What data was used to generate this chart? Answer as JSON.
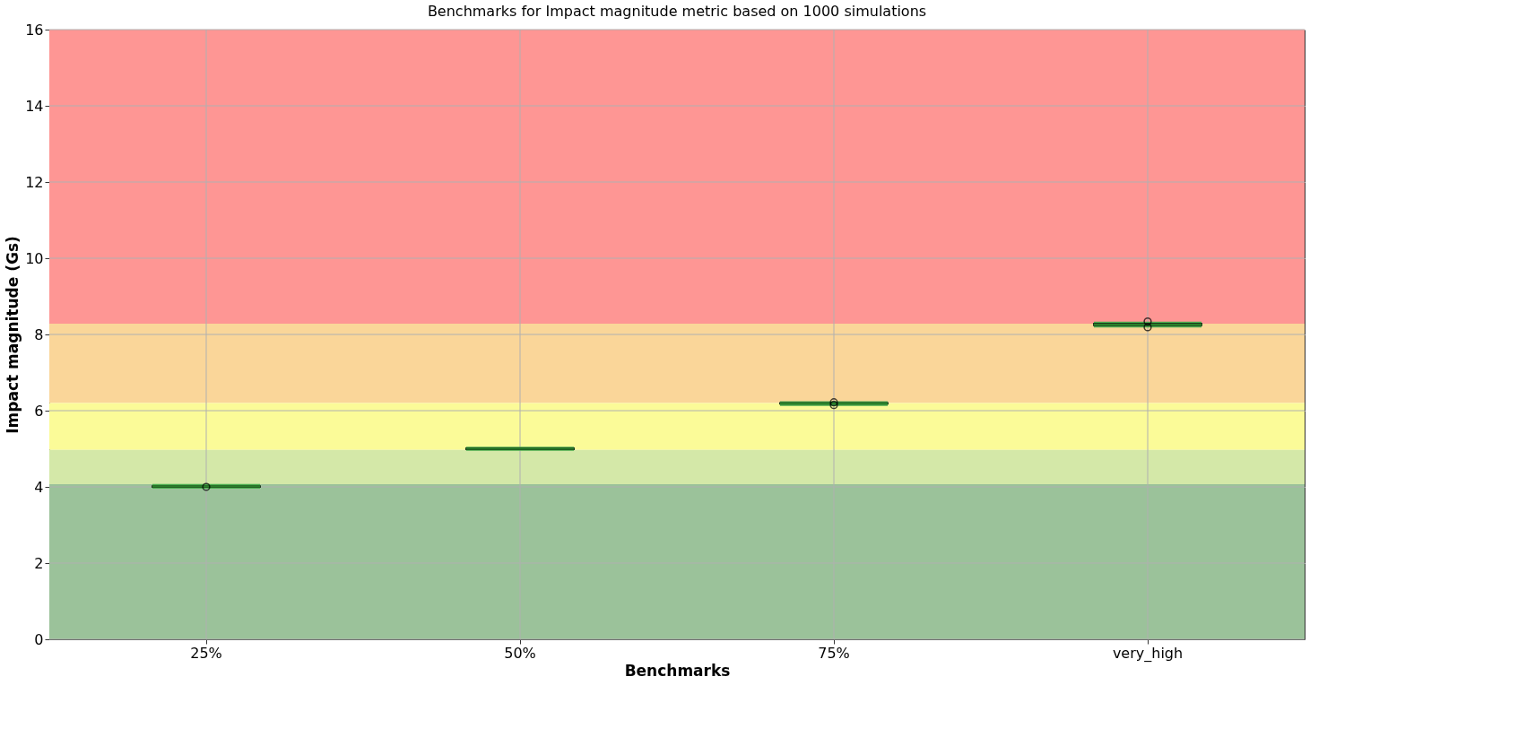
{
  "chart_data": {
    "type": "box",
    "title": "Benchmarks for Impact magnitude metric based on 1000 simulations",
    "xlabel": "Benchmarks",
    "ylabel": "Impact magnitude (Gs)",
    "categories": [
      "25%",
      "50%",
      "75%",
      "very_high"
    ],
    "series": [
      {
        "color": "#1e3a1e",
        "boxes": [
          {
            "low": 3.99,
            "q1": 4.0,
            "median": 4.01,
            "q3": 4.02,
            "high": 4.04,
            "outliers": [
              4.0
            ]
          },
          {
            "low": 4.98,
            "q1": 4.99,
            "median": 5.0,
            "q3": 5.01,
            "high": 5.02
          },
          {
            "low": 6.16,
            "q1": 6.18,
            "median": 6.19,
            "q3": 6.2,
            "high": 6.21,
            "outliers": [
              6.22,
              6.15
            ]
          },
          {
            "low": 8.22,
            "q1": 8.24,
            "median": 8.26,
            "q3": 8.28,
            "high": 8.3,
            "outliers": [
              8.34,
              8.19
            ]
          }
        ]
      }
    ],
    "bands": [
      {
        "axis": "y",
        "from": 8.28,
        "to": 16,
        "color": "#fe9694"
      },
      {
        "axis": "y",
        "from": 6.2,
        "to": 8.28,
        "color": "#fad699"
      },
      {
        "axis": "y",
        "from": 4.97,
        "to": 6.2,
        "color": "#fbfb98"
      },
      {
        "axis": "y",
        "from": 4.07,
        "to": 4.97,
        "color": "#d4e8a8"
      },
      {
        "axis": "y",
        "from": 0,
        "to": 4.07,
        "color": "#9bc29a"
      }
    ],
    "ylim": [
      0,
      16
    ],
    "yticks": [
      0,
      2,
      4,
      6,
      8,
      10,
      12,
      14,
      16
    ],
    "grid": true
  }
}
